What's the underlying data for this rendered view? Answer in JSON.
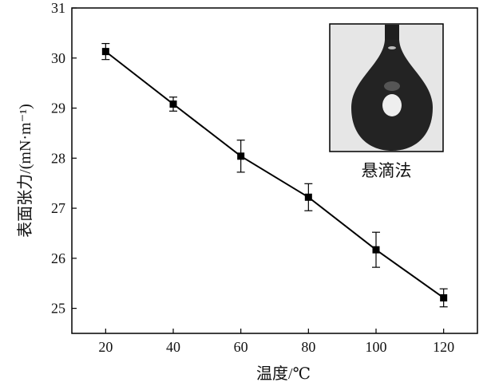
{
  "chart_data": {
    "type": "line",
    "title": "",
    "xlabel": "温度/℃",
    "ylabel": "表面张力/(mN·m⁻¹)",
    "xlim": [
      10,
      130
    ],
    "ylim": [
      24.5,
      31
    ],
    "x_ticks": [
      20,
      40,
      60,
      80,
      100,
      120
    ],
    "y_ticks": [
      25,
      26,
      27,
      28,
      29,
      30,
      31
    ],
    "grid": false,
    "marker": "square",
    "line_color": "#000000",
    "series": [
      {
        "x": [
          20,
          40,
          60,
          80,
          100,
          120
        ],
        "y": [
          30.13,
          29.08,
          28.04,
          27.22,
          26.17,
          25.21
        ],
        "error": [
          0.16,
          0.14,
          0.32,
          0.27,
          0.35,
          0.18
        ]
      }
    ],
    "inset": {
      "label": "悬滴法",
      "image": "pendant-drop-photo"
    }
  }
}
